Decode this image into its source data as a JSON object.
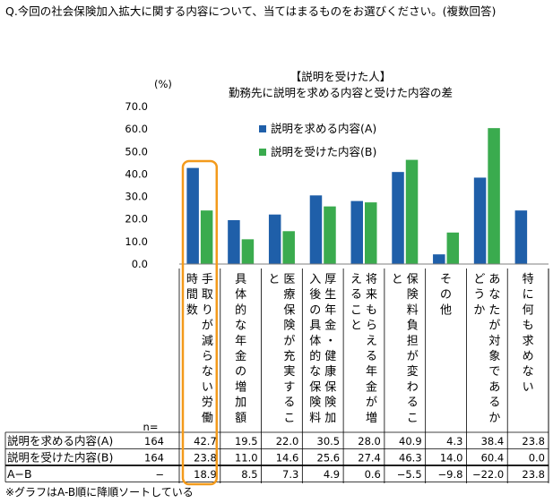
{
  "question": "Q.今回の社会保険加入拡大に関する内容について、当てはまるものをお選びください。(複数回答)",
  "footnote": "※グラフはA-B順に降順ソートしている",
  "colors": {
    "series_a": "#1f5fa9",
    "series_b": "#3aab4e",
    "highlight": "#f39a1b"
  },
  "chart_data": {
    "type": "bar",
    "title": "【説明を受けた人】",
    "subtitle": "勤務先に説明を求める内容と受けた内容の差",
    "ylabel": "(%)",
    "ylim": [
      0,
      70
    ],
    "yticks": [
      "70.0",
      "60.0",
      "50.0",
      "40.0",
      "30.0",
      "20.0",
      "10.0",
      "0.0"
    ],
    "categories": [
      "手取りが減らない労働時間数",
      "具体的な年金の増加額",
      "医療保険が充実すること",
      "厚生年金・健康保険加入後の具体的な保険料",
      "将来もらえる年金が増えること",
      "保険料負担が変わること",
      "その他",
      "あなたが対象であるかどうか",
      "特に何も求めない"
    ],
    "series": [
      {
        "name": "説明を求める内容(A)",
        "values": [
          42.7,
          19.5,
          22.0,
          30.5,
          28.0,
          40.9,
          4.3,
          38.4,
          23.8
        ]
      },
      {
        "name": "説明を受けた内容(B)",
        "values": [
          23.8,
          11.0,
          14.6,
          25.6,
          27.4,
          46.3,
          14.0,
          60.4,
          0.0
        ]
      }
    ],
    "highlight_index": 0,
    "table": {
      "n_header": "n=",
      "rows": [
        {
          "label": "説明を求める内容(A)",
          "n": "164",
          "cells": [
            "42.7",
            "19.5",
            "22.0",
            "30.5",
            "28.0",
            "40.9",
            "4.3",
            "38.4",
            "23.8"
          ]
        },
        {
          "label": "説明を受けた内容(B)",
          "n": "164",
          "cells": [
            "23.8",
            "11.0",
            "14.6",
            "25.6",
            "27.4",
            "46.3",
            "14.0",
            "60.4",
            "0.0"
          ]
        },
        {
          "label": "A−B",
          "n": "−",
          "cells": [
            "18.9",
            "8.5",
            "7.3",
            "4.9",
            "0.6",
            "−5.5",
            "−9.8",
            "−22.0",
            "23.8"
          ]
        }
      ]
    }
  }
}
